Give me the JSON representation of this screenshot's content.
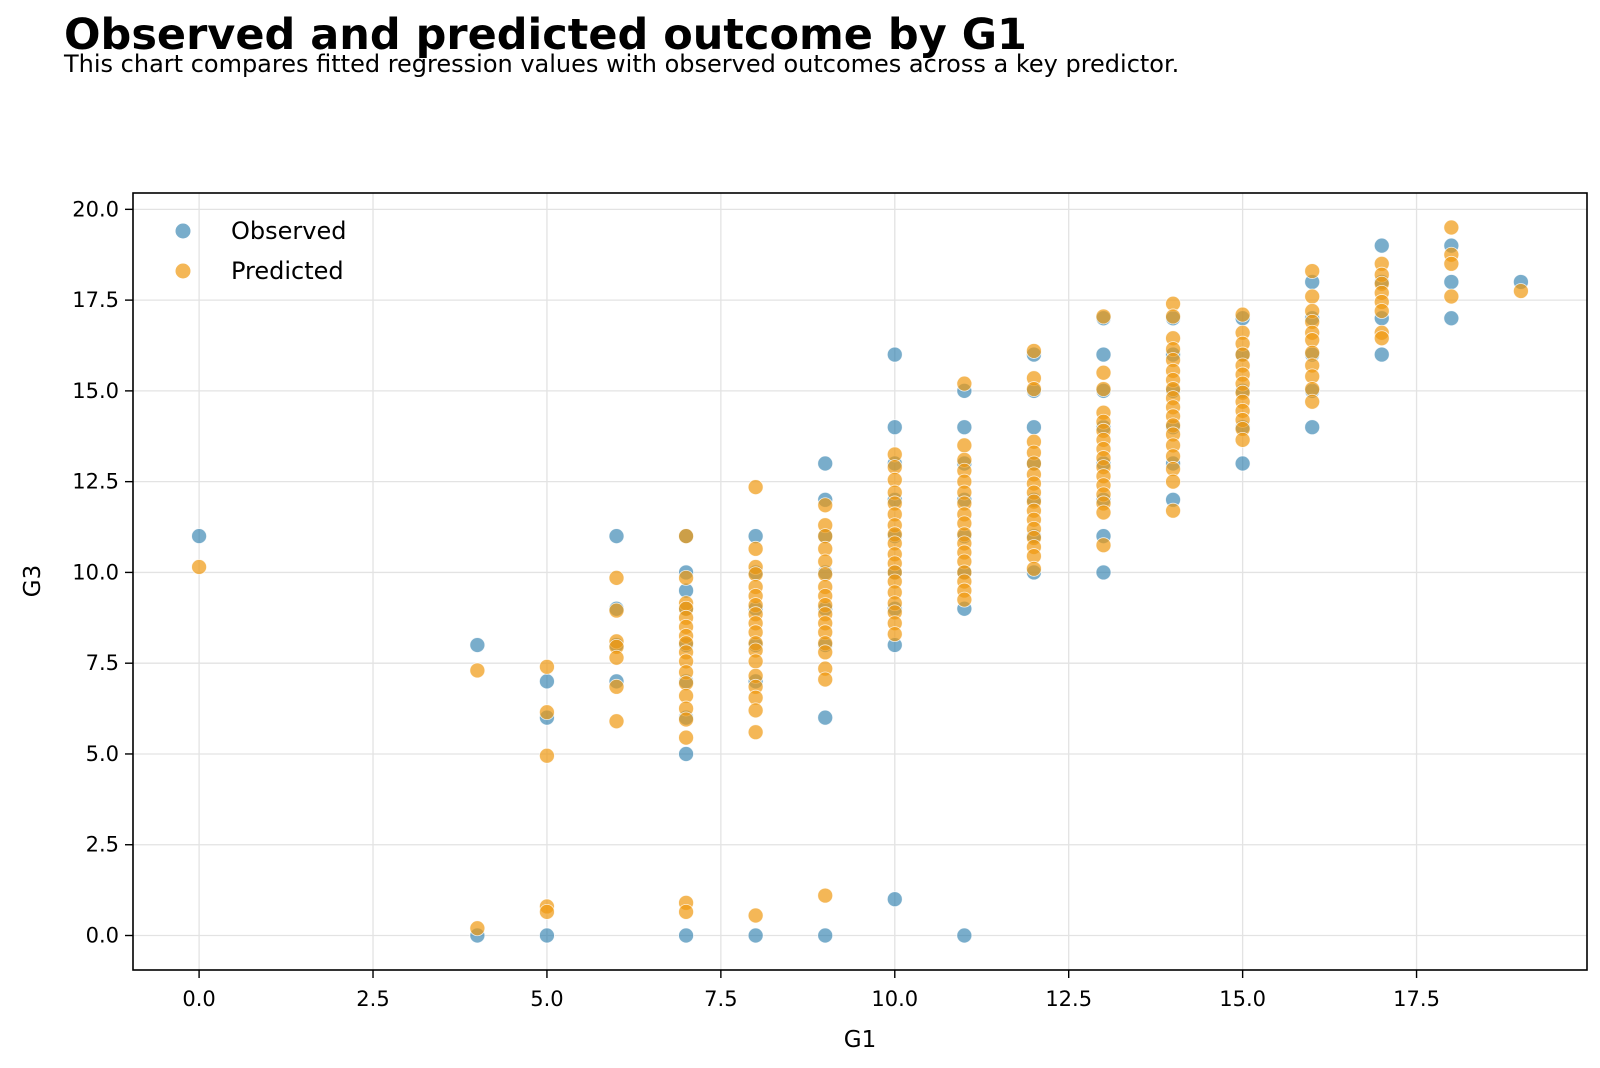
{
  "title": "Observed and predicted outcome by G1",
  "subtitle": "This chart compares fitted regression values with observed outcomes across a key predictor.",
  "chart_data": {
    "type": "scatter",
    "xlabel": "G1",
    "ylabel": "G3",
    "xlim": [
      -0.95,
      19.95
    ],
    "ylim": [
      -0.95,
      20.45
    ],
    "xticks": [
      "0.0",
      "2.5",
      "5.0",
      "7.5",
      "10.0",
      "12.5",
      "15.0",
      "17.5"
    ],
    "yticks": [
      "0.0",
      "2.5",
      "5.0",
      "7.5",
      "10.0",
      "12.5",
      "15.0",
      "17.5",
      "20.0"
    ],
    "grid": true,
    "legend": "top-left",
    "series": [
      {
        "name": "Observed",
        "color": "#1f77a8",
        "points": [
          [
            0,
            11
          ],
          [
            4,
            8
          ],
          [
            4,
            0
          ],
          [
            5,
            7
          ],
          [
            5,
            6
          ],
          [
            5,
            0
          ],
          [
            6,
            11
          ],
          [
            6,
            9
          ],
          [
            6,
            8
          ],
          [
            6,
            7
          ],
          [
            7,
            11
          ],
          [
            7,
            10
          ],
          [
            7,
            9.5
          ],
          [
            7,
            9
          ],
          [
            7,
            8
          ],
          [
            7,
            7
          ],
          [
            7,
            6
          ],
          [
            7,
            5
          ],
          [
            7,
            0
          ],
          [
            8,
            11
          ],
          [
            8,
            10
          ],
          [
            8,
            9
          ],
          [
            8,
            8
          ],
          [
            8,
            7
          ],
          [
            8,
            0
          ],
          [
            9,
            13
          ],
          [
            9,
            12
          ],
          [
            9,
            11
          ],
          [
            9,
            10
          ],
          [
            9,
            9
          ],
          [
            9,
            8
          ],
          [
            9,
            6
          ],
          [
            9,
            0
          ],
          [
            10,
            16
          ],
          [
            10,
            14
          ],
          [
            10,
            13
          ],
          [
            10,
            12
          ],
          [
            10,
            11
          ],
          [
            10,
            10
          ],
          [
            10,
            9
          ],
          [
            10,
            8
          ],
          [
            10,
            1
          ],
          [
            11,
            15
          ],
          [
            11,
            14
          ],
          [
            11,
            13
          ],
          [
            11,
            12
          ],
          [
            11,
            11
          ],
          [
            11,
            10
          ],
          [
            11,
            9
          ],
          [
            11,
            0
          ],
          [
            12,
            16
          ],
          [
            12,
            15
          ],
          [
            12,
            14
          ],
          [
            12,
            13
          ],
          [
            12,
            12
          ],
          [
            12,
            11
          ],
          [
            12,
            10
          ],
          [
            13,
            17
          ],
          [
            13,
            16
          ],
          [
            13,
            15
          ],
          [
            13,
            14
          ],
          [
            13,
            13
          ],
          [
            13,
            12
          ],
          [
            13,
            11
          ],
          [
            13,
            10
          ],
          [
            14,
            17
          ],
          [
            14,
            16
          ],
          [
            14,
            15
          ],
          [
            14,
            14
          ],
          [
            14,
            13
          ],
          [
            14,
            12
          ],
          [
            15,
            17
          ],
          [
            15,
            16
          ],
          [
            15,
            15
          ],
          [
            15,
            14
          ],
          [
            15,
            13
          ],
          [
            16,
            18
          ],
          [
            16,
            17
          ],
          [
            16,
            16
          ],
          [
            16,
            15
          ],
          [
            16,
            14
          ],
          [
            17,
            19
          ],
          [
            17,
            18
          ],
          [
            17,
            17
          ],
          [
            17,
            16
          ],
          [
            18,
            19
          ],
          [
            18,
            18
          ],
          [
            18,
            17
          ],
          [
            19,
            18
          ]
        ]
      },
      {
        "name": "Predicted",
        "color": "#f0980f",
        "points": [
          [
            0,
            10.15
          ],
          [
            4,
            7.3
          ],
          [
            4,
            0.2
          ],
          [
            5,
            7.4
          ],
          [
            5,
            6.15
          ],
          [
            5,
            4.95
          ],
          [
            5,
            0.8
          ],
          [
            5,
            0.65
          ],
          [
            6,
            9.85
          ],
          [
            6,
            8.95
          ],
          [
            6,
            8.1
          ],
          [
            6,
            7.95
          ],
          [
            6,
            7.65
          ],
          [
            6,
            6.85
          ],
          [
            6,
            5.9
          ],
          [
            7,
            11
          ],
          [
            7,
            9.85
          ],
          [
            7,
            9.15
          ],
          [
            7,
            9.0
          ],
          [
            7,
            8.75
          ],
          [
            7,
            8.5
          ],
          [
            7,
            8.25
          ],
          [
            7,
            8.05
          ],
          [
            7,
            7.8
          ],
          [
            7,
            7.55
          ],
          [
            7,
            7.25
          ],
          [
            7,
            6.95
          ],
          [
            7,
            6.6
          ],
          [
            7,
            6.25
          ],
          [
            7,
            5.95
          ],
          [
            7,
            5.45
          ],
          [
            7,
            0.9
          ],
          [
            7,
            0.65
          ],
          [
            8,
            12.35
          ],
          [
            8,
            10.65
          ],
          [
            8,
            10.15
          ],
          [
            8,
            9.95
          ],
          [
            8,
            9.6
          ],
          [
            8,
            9.35
          ],
          [
            8,
            9.1
          ],
          [
            8,
            8.85
          ],
          [
            8,
            8.6
          ],
          [
            8,
            8.35
          ],
          [
            8,
            8.05
          ],
          [
            8,
            7.85
          ],
          [
            8,
            7.55
          ],
          [
            8,
            7.15
          ],
          [
            8,
            6.85
          ],
          [
            8,
            6.55
          ],
          [
            8,
            6.2
          ],
          [
            8,
            5.6
          ],
          [
            8,
            0.55
          ],
          [
            9,
            11.85
          ],
          [
            9,
            11.3
          ],
          [
            9,
            11.0
          ],
          [
            9,
            10.65
          ],
          [
            9,
            10.3
          ],
          [
            9,
            9.95
          ],
          [
            9,
            9.6
          ],
          [
            9,
            9.35
          ],
          [
            9,
            9.1
          ],
          [
            9,
            8.85
          ],
          [
            9,
            8.6
          ],
          [
            9,
            8.35
          ],
          [
            9,
            8.05
          ],
          [
            9,
            7.8
          ],
          [
            9,
            7.35
          ],
          [
            9,
            7.05
          ],
          [
            9,
            1.1
          ],
          [
            10,
            13.25
          ],
          [
            10,
            12.9
          ],
          [
            10,
            12.55
          ],
          [
            10,
            12.2
          ],
          [
            10,
            11.9
          ],
          [
            10,
            11.6
          ],
          [
            10,
            11.3
          ],
          [
            10,
            11.05
          ],
          [
            10,
            10.8
          ],
          [
            10,
            10.5
          ],
          [
            10,
            10.25
          ],
          [
            10,
            10.0
          ],
          [
            10,
            9.75
          ],
          [
            10,
            9.45
          ],
          [
            10,
            9.15
          ],
          [
            10,
            8.9
          ],
          [
            10,
            8.6
          ],
          [
            10,
            8.3
          ],
          [
            11,
            15.2
          ],
          [
            11,
            13.5
          ],
          [
            11,
            13.1
          ],
          [
            11,
            12.8
          ],
          [
            11,
            12.5
          ],
          [
            11,
            12.2
          ],
          [
            11,
            11.9
          ],
          [
            11,
            11.6
          ],
          [
            11,
            11.35
          ],
          [
            11,
            11.05
          ],
          [
            11,
            10.8
          ],
          [
            11,
            10.55
          ],
          [
            11,
            10.3
          ],
          [
            11,
            10.0
          ],
          [
            11,
            9.75
          ],
          [
            11,
            9.5
          ],
          [
            11,
            9.25
          ],
          [
            12,
            16.1
          ],
          [
            12,
            15.35
          ],
          [
            12,
            15.05
          ],
          [
            12,
            13.6
          ],
          [
            12,
            13.3
          ],
          [
            12,
            13.0
          ],
          [
            12,
            12.7
          ],
          [
            12,
            12.45
          ],
          [
            12,
            12.2
          ],
          [
            12,
            11.95
          ],
          [
            12,
            11.7
          ],
          [
            12,
            11.45
          ],
          [
            12,
            11.2
          ],
          [
            12,
            10.95
          ],
          [
            12,
            10.7
          ],
          [
            12,
            10.45
          ],
          [
            12,
            10.1
          ],
          [
            13,
            17.05
          ],
          [
            13,
            15.5
          ],
          [
            13,
            15.05
          ],
          [
            13,
            14.4
          ],
          [
            13,
            14.15
          ],
          [
            13,
            13.9
          ],
          [
            13,
            13.65
          ],
          [
            13,
            13.4
          ],
          [
            13,
            13.15
          ],
          [
            13,
            12.9
          ],
          [
            13,
            12.65
          ],
          [
            13,
            12.4
          ],
          [
            13,
            12.15
          ],
          [
            13,
            11.9
          ],
          [
            13,
            11.65
          ],
          [
            13,
            10.75
          ],
          [
            14,
            17.4
          ],
          [
            14,
            17.05
          ],
          [
            14,
            16.45
          ],
          [
            14,
            16.15
          ],
          [
            14,
            15.85
          ],
          [
            14,
            15.55
          ],
          [
            14,
            15.3
          ],
          [
            14,
            15.05
          ],
          [
            14,
            14.8
          ],
          [
            14,
            14.55
          ],
          [
            14,
            14.3
          ],
          [
            14,
            14.05
          ],
          [
            14,
            13.8
          ],
          [
            14,
            13.5
          ],
          [
            14,
            13.2
          ],
          [
            14,
            12.85
          ],
          [
            14,
            12.5
          ],
          [
            14,
            11.7
          ],
          [
            15,
            17.1
          ],
          [
            15,
            16.6
          ],
          [
            15,
            16.3
          ],
          [
            15,
            16.0
          ],
          [
            15,
            15.7
          ],
          [
            15,
            15.45
          ],
          [
            15,
            15.2
          ],
          [
            15,
            14.95
          ],
          [
            15,
            14.7
          ],
          [
            15,
            14.45
          ],
          [
            15,
            14.2
          ],
          [
            15,
            13.95
          ],
          [
            15,
            13.65
          ],
          [
            16,
            18.3
          ],
          [
            16,
            17.6
          ],
          [
            16,
            17.2
          ],
          [
            16,
            16.9
          ],
          [
            16,
            16.6
          ],
          [
            16,
            16.4
          ],
          [
            16,
            16.05
          ],
          [
            16,
            15.7
          ],
          [
            16,
            15.4
          ],
          [
            16,
            15.05
          ],
          [
            16,
            14.7
          ],
          [
            17,
            18.5
          ],
          [
            17,
            18.2
          ],
          [
            17,
            17.95
          ],
          [
            17,
            17.7
          ],
          [
            17,
            17.45
          ],
          [
            17,
            17.2
          ],
          [
            17,
            16.6
          ],
          [
            17,
            16.45
          ],
          [
            18,
            19.5
          ],
          [
            18,
            18.75
          ],
          [
            18,
            18.5
          ],
          [
            18,
            17.6
          ],
          [
            19,
            17.75
          ]
        ]
      }
    ]
  }
}
